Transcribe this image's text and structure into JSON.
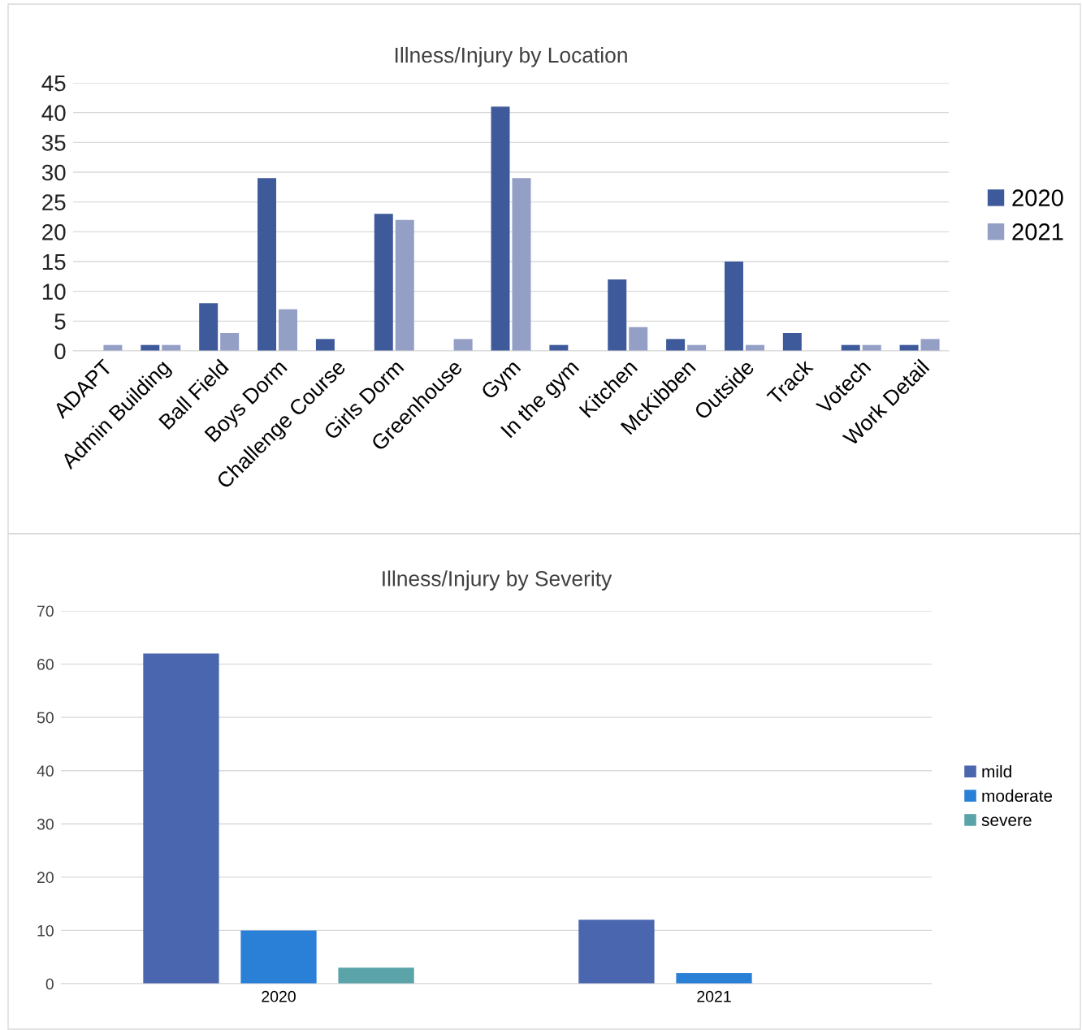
{
  "chart_data": [
    {
      "type": "bar",
      "title": "Illness/Injury by Location",
      "categories": [
        "ADAPT",
        "Admin Building",
        "Ball Field",
        "Boys Dorm",
        "Challenge Course",
        "Girls Dorm",
        "Greenhouse",
        "Gym",
        "In the gym",
        "Kitchen",
        "McKibben",
        "Outside",
        "Track",
        "Votech",
        "Work Detail"
      ],
      "series": [
        {
          "name": "2020",
          "color": "#3f5a9b",
          "values": [
            0,
            1,
            8,
            29,
            2,
            23,
            0,
            41,
            1,
            12,
            2,
            15,
            3,
            1,
            1
          ]
        },
        {
          "name": "2021",
          "color": "#949fc6",
          "values": [
            1,
            1,
            3,
            7,
            0,
            22,
            2,
            29,
            0,
            4,
            1,
            1,
            0,
            1,
            2
          ]
        }
      ],
      "ylim": [
        0,
        45
      ],
      "yticks": [
        0,
        5,
        10,
        15,
        20,
        25,
        30,
        35,
        40,
        45
      ],
      "grid": "y",
      "legend": "right"
    },
    {
      "type": "bar",
      "title": "Illness/Injury by Severity",
      "categories": [
        "2020",
        "2021"
      ],
      "series": [
        {
          "name": "mild",
          "color": "#4a66ae",
          "values": [
            62,
            12
          ]
        },
        {
          "name": "moderate",
          "color": "#2a7fd6",
          "values": [
            10,
            2
          ]
        },
        {
          "name": "severe",
          "color": "#5aa3a8",
          "values": [
            3,
            0
          ]
        }
      ],
      "ylim": [
        0,
        70
      ],
      "yticks": [
        0,
        10,
        20,
        30,
        40,
        50,
        60,
        70
      ],
      "grid": "y",
      "legend": "right"
    }
  ]
}
